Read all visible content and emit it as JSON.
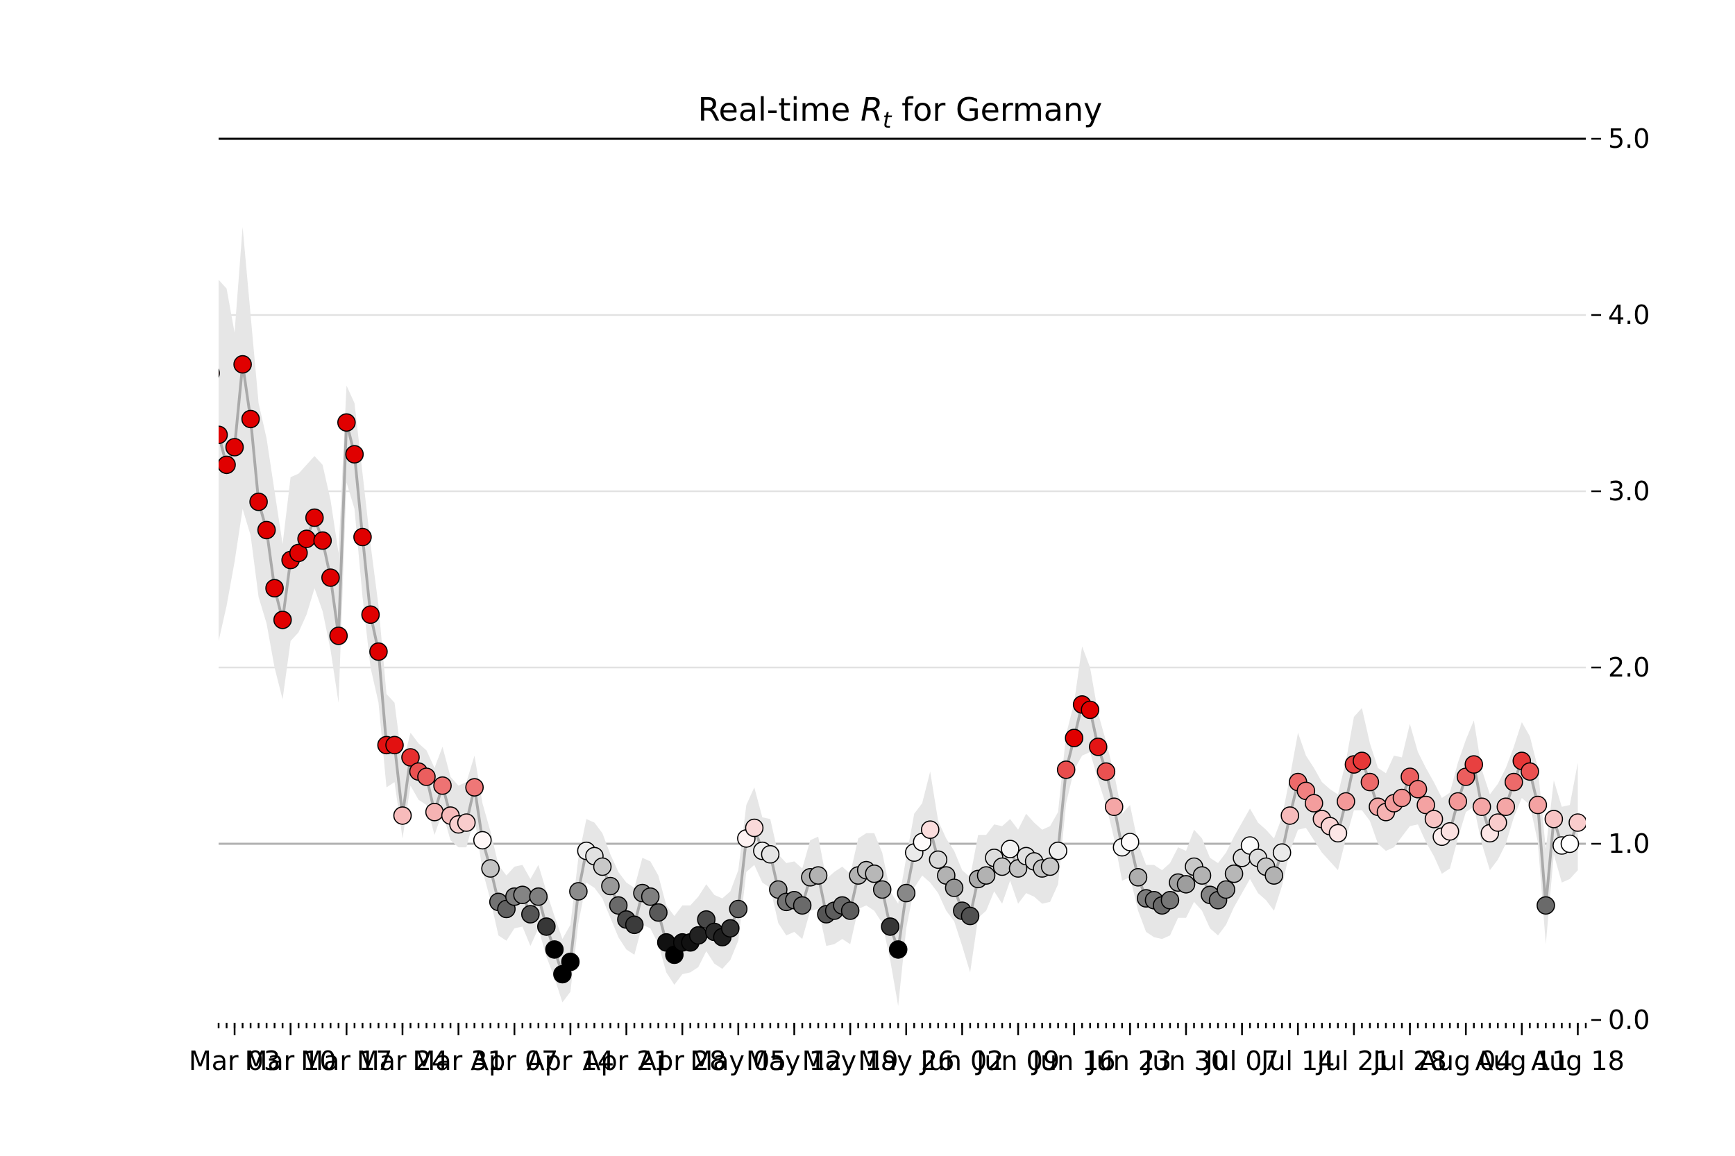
{
  "chart_data": {
    "type": "scatter",
    "title_prefix": "Real-time ",
    "title_var": "R",
    "title_sub": "t",
    "title_suffix": " for Germany",
    "xlabel": "",
    "ylabel": "",
    "x_start": "2020-03-01",
    "x_end": "2020-08-19",
    "ylim": [
      0,
      5
    ],
    "yticks": [
      "0.0",
      "1.0",
      "2.0",
      "3.0",
      "4.0",
      "5.0"
    ],
    "y_reference_line": 1.0,
    "grid": "horizontal",
    "y_axis_side": "right",
    "xticks": [
      {
        "date": "2020-03-03",
        "label": "Mar 03"
      },
      {
        "date": "2020-03-10",
        "label": "Mar 10"
      },
      {
        "date": "2020-03-17",
        "label": "Mar 17"
      },
      {
        "date": "2020-03-24",
        "label": "Mar 24"
      },
      {
        "date": "2020-03-31",
        "label": "Mar 31"
      },
      {
        "date": "2020-04-07",
        "label": "Apr 07"
      },
      {
        "date": "2020-04-14",
        "label": "Apr 14"
      },
      {
        "date": "2020-04-21",
        "label": "Apr 21"
      },
      {
        "date": "2020-04-28",
        "label": "Apr 28"
      },
      {
        "date": "2020-05-05",
        "label": "May 05"
      },
      {
        "date": "2020-05-12",
        "label": "May 12"
      },
      {
        "date": "2020-05-19",
        "label": "May 19"
      },
      {
        "date": "2020-05-26",
        "label": "May 26"
      },
      {
        "date": "2020-06-02",
        "label": "Jun 02"
      },
      {
        "date": "2020-06-09",
        "label": "Jun 09"
      },
      {
        "date": "2020-06-16",
        "label": "Jun 16"
      },
      {
        "date": "2020-06-23",
        "label": "Jun 23"
      },
      {
        "date": "2020-06-30",
        "label": "Jun 30"
      },
      {
        "date": "2020-07-07",
        "label": "Jul 07"
      },
      {
        "date": "2020-07-14",
        "label": "Jul 14"
      },
      {
        "date": "2020-07-21",
        "label": "Jul 21"
      },
      {
        "date": "2020-07-28",
        "label": "Jul 28"
      },
      {
        "date": "2020-08-04",
        "label": "Aug 04"
      },
      {
        "date": "2020-08-11",
        "label": "Aug 11"
      },
      {
        "date": "2020-08-18",
        "label": "Aug 18"
      }
    ],
    "colormap": {
      "low": "#000000",
      "mid": "#ffffff",
      "high": "#e00000",
      "min": 0.4,
      "max": 1.6
    },
    "series": [
      {
        "x_start": "2020-02-29",
        "values": [
          3.67,
          3.32,
          3.15,
          3.25,
          3.72,
          3.41,
          2.94,
          2.78,
          2.45,
          2.27,
          2.61,
          2.65,
          2.73,
          2.85,
          2.72,
          2.51,
          2.18,
          3.39,
          3.21,
          2.74,
          2.3,
          2.09,
          1.56,
          1.56,
          1.16,
          1.49,
          1.41,
          1.38,
          1.18,
          1.33,
          1.16,
          1.11,
          1.12,
          1.32,
          1.02,
          0.86,
          0.67,
          0.63,
          0.7,
          0.71,
          0.6,
          0.7,
          0.53,
          0.4,
          0.26,
          0.33,
          0.73,
          0.96,
          0.93,
          0.87,
          0.76,
          0.65,
          0.57,
          0.54,
          0.72,
          0.7,
          0.61,
          0.44,
          0.37,
          0.44,
          0.44,
          0.48,
          0.57,
          0.5,
          0.47,
          0.52,
          0.63,
          1.03,
          1.09,
          0.96,
          0.94,
          0.74,
          0.67,
          0.68,
          0.65,
          0.81,
          0.82,
          0.6,
          0.62,
          0.65,
          0.62,
          0.82,
          0.85,
          0.83,
          0.74,
          0.53,
          0.4,
          0.72,
          0.95,
          1.01,
          1.08,
          0.91,
          0.82,
          0.75,
          0.62,
          0.59,
          0.8,
          0.82,
          0.92,
          0.87,
          0.97,
          0.86,
          0.93,
          0.9,
          0.86,
          0.87,
          0.96,
          1.42,
          1.6,
          1.79,
          1.76,
          1.55,
          1.41,
          1.21,
          0.98,
          1.01,
          0.81,
          0.69,
          0.68,
          0.65,
          0.68,
          0.78,
          0.77,
          0.87,
          0.82,
          0.71,
          0.68,
          0.74,
          0.83,
          0.92,
          0.99,
          0.92,
          0.87,
          0.82,
          0.95,
          1.16,
          1.35,
          1.3,
          1.23,
          1.14,
          1.1,
          1.06,
          1.24,
          1.45,
          1.47,
          1.35,
          1.21,
          1.18,
          1.23,
          1.26,
          1.38,
          1.31,
          1.22,
          1.14,
          1.04,
          1.07,
          1.24,
          1.38,
          1.45,
          1.21,
          1.06,
          1.12,
          1.21,
          1.35,
          1.47,
          1.41,
          1.22,
          0.65,
          1.14,
          0.99,
          1.0,
          1.12
        ]
      }
    ],
    "band_high": [
      4.5,
      4.2,
      4.15,
      3.9,
      4.5,
      4.0,
      3.5,
      3.3,
      3.0,
      2.7,
      3.08,
      3.1,
      3.15,
      3.2,
      3.15,
      2.95,
      2.65,
      3.6,
      3.5,
      3.1,
      2.7,
      2.35,
      1.85,
      1.8,
      1.45,
      1.63,
      1.57,
      1.53,
      1.43,
      1.55,
      1.38,
      1.33,
      1.35,
      1.5,
      1.23,
      1.07,
      0.88,
      0.82,
      0.87,
      0.88,
      0.8,
      0.88,
      0.73,
      0.59,
      0.46,
      0.54,
      0.92,
      1.14,
      1.12,
      1.06,
      0.94,
      0.84,
      0.78,
      0.75,
      0.92,
      0.9,
      0.82,
      0.65,
      0.59,
      0.65,
      0.65,
      0.7,
      0.77,
      0.71,
      0.69,
      0.73,
      0.85,
      1.22,
      1.32,
      1.15,
      1.14,
      0.94,
      0.89,
      0.9,
      0.86,
      1.02,
      1.04,
      0.8,
      0.84,
      0.87,
      0.83,
      1.03,
      1.06,
      1.06,
      0.95,
      0.73,
      0.66,
      0.92,
      1.17,
      1.23,
      1.41,
      1.13,
      1.03,
      0.96,
      0.85,
      0.81,
      1.05,
      1.05,
      1.11,
      1.1,
      1.14,
      1.08,
      1.17,
      1.12,
      1.08,
      1.1,
      1.18,
      1.62,
      1.8,
      2.12,
      2.0,
      1.74,
      1.58,
      1.4,
      1.17,
      1.22,
      1.0,
      0.88,
      0.88,
      0.85,
      0.89,
      0.98,
      0.96,
      1.08,
      1.03,
      0.92,
      0.89,
      0.95,
      1.04,
      1.12,
      1.2,
      1.12,
      1.08,
      1.03,
      1.15,
      1.38,
      1.63,
      1.5,
      1.43,
      1.35,
      1.31,
      1.28,
      1.47,
      1.72,
      1.77,
      1.57,
      1.43,
      1.4,
      1.5,
      1.49,
      1.68,
      1.52,
      1.43,
      1.35,
      1.26,
      1.29,
      1.46,
      1.59,
      1.7,
      1.42,
      1.28,
      1.34,
      1.43,
      1.55,
      1.69,
      1.61,
      1.43,
      0.97,
      1.36,
      1.21,
      1.22,
      1.46
    ],
    "band_low": [
      2.2,
      2.15,
      2.35,
      2.6,
      2.9,
      2.75,
      2.4,
      2.25,
      2.0,
      1.82,
      2.15,
      2.2,
      2.3,
      2.45,
      2.32,
      2.1,
      1.8,
      3.05,
      2.9,
      2.4,
      2.0,
      1.8,
      1.32,
      1.35,
      1.03,
      1.33,
      1.25,
      1.22,
      1.05,
      1.18,
      1.02,
      0.98,
      0.98,
      1.15,
      0.85,
      0.68,
      0.48,
      0.45,
      0.52,
      0.53,
      0.42,
      0.52,
      0.36,
      0.24,
      0.1,
      0.16,
      0.55,
      0.78,
      0.75,
      0.69,
      0.58,
      0.47,
      0.4,
      0.37,
      0.54,
      0.52,
      0.43,
      0.27,
      0.2,
      0.26,
      0.27,
      0.3,
      0.39,
      0.32,
      0.29,
      0.34,
      0.45,
      0.84,
      0.88,
      0.78,
      0.75,
      0.55,
      0.48,
      0.5,
      0.46,
      0.62,
      0.63,
      0.42,
      0.43,
      0.46,
      0.43,
      0.63,
      0.65,
      0.62,
      0.55,
      0.34,
      0.08,
      0.52,
      0.75,
      0.82,
      0.78,
      0.72,
      0.62,
      0.56,
      0.42,
      0.27,
      0.58,
      0.62,
      0.73,
      0.66,
      0.79,
      0.66,
      0.72,
      0.7,
      0.66,
      0.67,
      0.77,
      1.23,
      1.42,
      1.5,
      1.52,
      1.36,
      1.22,
      1.03,
      0.79,
      0.81,
      0.62,
      0.5,
      0.47,
      0.46,
      0.48,
      0.58,
      0.58,
      0.67,
      0.62,
      0.52,
      0.48,
      0.54,
      0.64,
      0.72,
      0.8,
      0.72,
      0.68,
      0.62,
      0.76,
      0.96,
      1.08,
      1.09,
      1.02,
      0.95,
      0.9,
      0.85,
      1.03,
      1.19,
      1.19,
      1.13,
      1.0,
      0.96,
      0.98,
      1.04,
      1.1,
      1.11,
      1.01,
      0.93,
      0.83,
      0.86,
      1.03,
      1.18,
      1.21,
      1.0,
      0.85,
      0.91,
      1.0,
      1.15,
      1.26,
      1.22,
      1.01,
      0.43,
      0.94,
      0.78,
      0.8,
      0.85
    ]
  }
}
